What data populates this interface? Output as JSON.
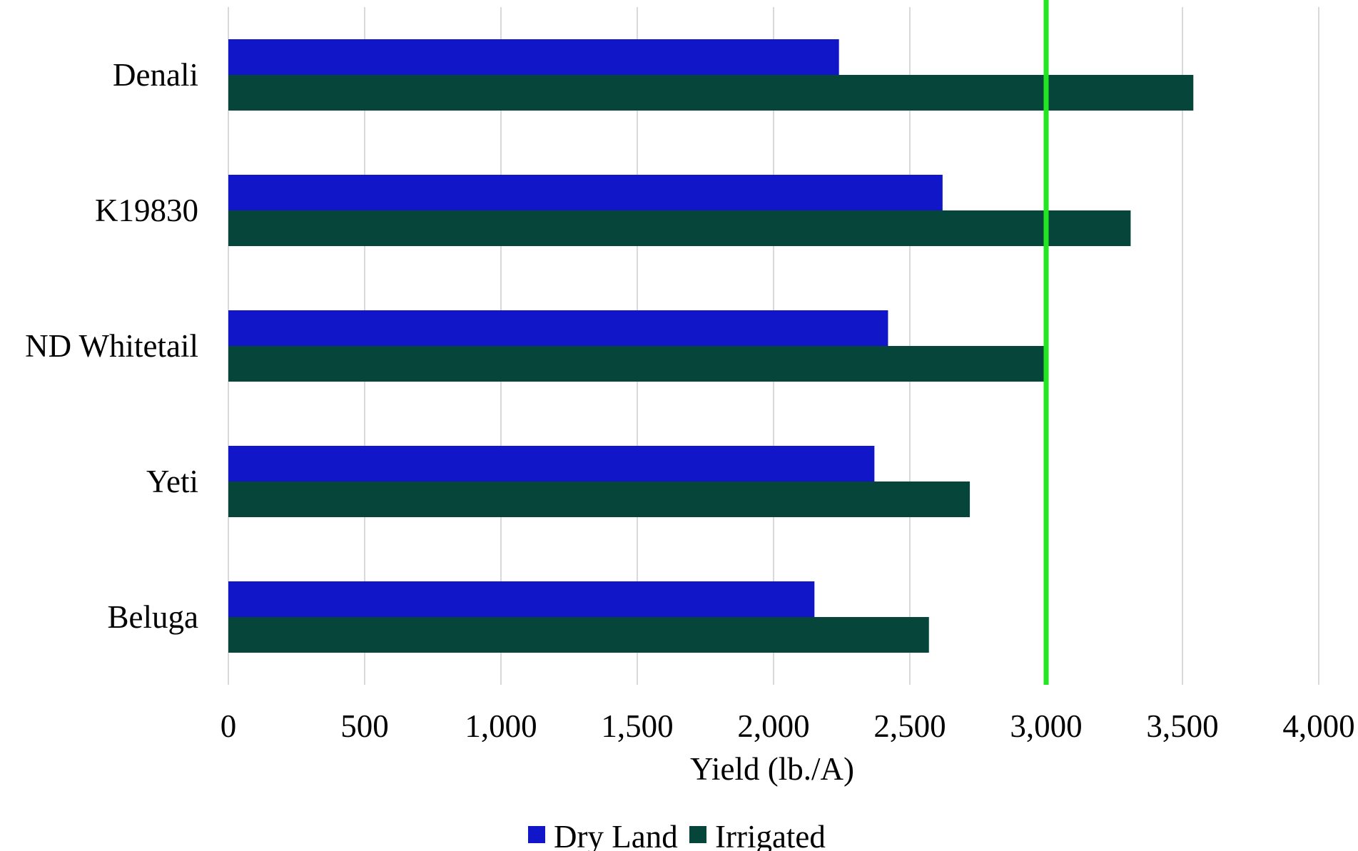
{
  "chart_data": {
    "type": "bar",
    "orientation": "horizontal",
    "categories": [
      "Denali",
      "K19830",
      "ND Whitetail",
      "Yeti",
      "Beluga"
    ],
    "series": [
      {
        "name": "Dry Land",
        "color": "#1116c8",
        "values": [
          2240,
          2620,
          2420,
          2370,
          2150
        ]
      },
      {
        "name": "Irrigated",
        "color": "#06453a",
        "values": [
          3540,
          3310,
          3000,
          2720,
          2570
        ]
      }
    ],
    "xlabel": "Yield (lb./A)",
    "ylabel": "",
    "title": "",
    "xlim": [
      0,
      4000
    ],
    "xticks": [
      0,
      500,
      1000,
      1500,
      2000,
      2500,
      3000,
      3500,
      4000
    ],
    "xtick_labels": [
      "0",
      "500",
      "1,000",
      "1,500",
      "2,000",
      "2,500",
      "3,000",
      "3,500",
      "4,000"
    ],
    "reference_line": {
      "value": 3000,
      "color": "#22e622"
    },
    "grid": "vertical",
    "legend": {
      "position": "bottom"
    }
  }
}
